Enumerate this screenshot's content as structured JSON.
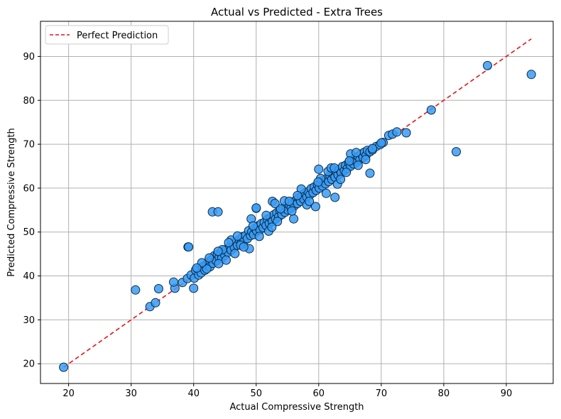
{
  "chart_data": {
    "type": "scatter",
    "title": "Actual vs Predicted - Extra Trees",
    "xlabel": "Actual Compressive Strength",
    "ylabel": "Predicted Compressive Strength",
    "xlim": [
      15.5,
      97.5
    ],
    "ylim": [
      15.5,
      98
    ],
    "xticks": [
      20,
      30,
      40,
      50,
      60,
      70,
      80,
      90
    ],
    "yticks": [
      20,
      30,
      40,
      50,
      60,
      70,
      80,
      90
    ],
    "grid": true,
    "legend": {
      "placement": "top-left",
      "entries": [
        "Perfect Prediction"
      ]
    },
    "colors": {
      "point_fill": "#3a9cf4",
      "point_edge": "#0a2a4a",
      "reference_line": "#e8131a",
      "grid": "#b0b0b0"
    },
    "reference_line": {
      "name": "Perfect Prediction",
      "x": [
        19.2,
        94
      ],
      "y": [
        19.2,
        94
      ]
    },
    "series": [
      {
        "type": "scatter",
        "points": [
          [
            19.2,
            19.2
          ],
          [
            30.7,
            36.8
          ],
          [
            33,
            33
          ],
          [
            33.9,
            33.9
          ],
          [
            34.4,
            37.1
          ],
          [
            37,
            37.2
          ],
          [
            36.8,
            38.6
          ],
          [
            38.2,
            38.5
          ],
          [
            39,
            39.4
          ],
          [
            39.6,
            40.2
          ],
          [
            40,
            37.2
          ],
          [
            39.1,
            46.6
          ],
          [
            40.1,
            39.5
          ],
          [
            40.3,
            41.3
          ],
          [
            40.8,
            40.2
          ],
          [
            41.2,
            40.7
          ],
          [
            41.4,
            42.1
          ],
          [
            41.8,
            41.3
          ],
          [
            42,
            42.6
          ],
          [
            42.3,
            43.2
          ],
          [
            42.6,
            42.1
          ],
          [
            42.9,
            43.8
          ],
          [
            43.1,
            42.9
          ],
          [
            43.3,
            44.6
          ],
          [
            43.6,
            43.5
          ],
          [
            43.8,
            44.9
          ],
          [
            44.1,
            44.3
          ],
          [
            44.3,
            45.2
          ],
          [
            44.5,
            44.0
          ],
          [
            44.8,
            45.7
          ],
          [
            45,
            44.7
          ],
          [
            45.3,
            46.1
          ],
          [
            45.5,
            45.4
          ],
          [
            45.8,
            46.6
          ],
          [
            46,
            45.9
          ],
          [
            46.3,
            47.2
          ],
          [
            46.5,
            46.5
          ],
          [
            46.8,
            47.8
          ],
          [
            47,
            47.0
          ],
          [
            47.3,
            48.2
          ],
          [
            47.6,
            47.4
          ],
          [
            47.8,
            48.9
          ],
          [
            48.1,
            48.0
          ],
          [
            48.3,
            49.2
          ],
          [
            48.6,
            48.5
          ],
          [
            48.8,
            50.3
          ],
          [
            49.1,
            49.2
          ],
          [
            49.3,
            50.1
          ],
          [
            49.6,
            49.4
          ],
          [
            49.8,
            50.8
          ],
          [
            50.1,
            50.2
          ],
          [
            50.3,
            51.4
          ],
          [
            50.6,
            50.5
          ],
          [
            50.8,
            51.9
          ],
          [
            51.1,
            51.0
          ],
          [
            51.3,
            52.2
          ],
          [
            51.6,
            51.5
          ],
          [
            51.8,
            52.9
          ],
          [
            52.1,
            52.0
          ],
          [
            52.3,
            53.2
          ],
          [
            52.6,
            52.4
          ],
          [
            52.8,
            53.9
          ],
          [
            53.1,
            53.0
          ],
          [
            53.3,
            54.4
          ],
          [
            53.6,
            53.5
          ],
          [
            53.8,
            54.9
          ],
          [
            54.1,
            54.0
          ],
          [
            54.3,
            55.2
          ],
          [
            54.6,
            54.5
          ],
          [
            54.8,
            55.9
          ],
          [
            55.1,
            55.0
          ],
          [
            55.3,
            56.2
          ],
          [
            55.6,
            55.5
          ],
          [
            55.8,
            56.8
          ],
          [
            56.1,
            56.0
          ],
          [
            56.3,
            57.2
          ],
          [
            56.6,
            56.5
          ],
          [
            56.8,
            57.8
          ],
          [
            57.1,
            57.0
          ],
          [
            57.3,
            58.2
          ],
          [
            57.6,
            57.5
          ],
          [
            57.8,
            58.9
          ],
          [
            58.1,
            58.0
          ],
          [
            58.3,
            59.2
          ],
          [
            58.6,
            58.5
          ],
          [
            58.8,
            59.9
          ],
          [
            59.1,
            59.0
          ],
          [
            59.3,
            60.3
          ],
          [
            59.6,
            59.5
          ],
          [
            59.8,
            60.8
          ],
          [
            60.1,
            60.0
          ],
          [
            60.3,
            61.2
          ],
          [
            60.6,
            60.5
          ],
          [
            60.8,
            61.8
          ],
          [
            61.1,
            61.0
          ],
          [
            61.3,
            62.2
          ],
          [
            61.6,
            61.5
          ],
          [
            61.8,
            62.9
          ],
          [
            62.1,
            62.0
          ],
          [
            62.3,
            63.2
          ],
          [
            62.6,
            62.5
          ],
          [
            62.8,
            63.8
          ],
          [
            63.1,
            63.0
          ],
          [
            63.3,
            64.2
          ],
          [
            63.6,
            63.5
          ],
          [
            63.8,
            64.9
          ],
          [
            64.1,
            64.0
          ],
          [
            64.3,
            65.2
          ],
          [
            64.6,
            64.5
          ],
          [
            64.8,
            65.8
          ],
          [
            65.1,
            65.0
          ],
          [
            65.3,
            66.2
          ],
          [
            65.6,
            65.5
          ],
          [
            65.8,
            66.8
          ],
          [
            66.1,
            66.0
          ],
          [
            66.3,
            67.2
          ],
          [
            66.6,
            66.5
          ],
          [
            66.8,
            67.8
          ],
          [
            67.1,
            67.0
          ],
          [
            67.3,
            68.2
          ],
          [
            67.6,
            67.5
          ],
          [
            67.8,
            68.6
          ],
          [
            68.2,
            68.3
          ],
          [
            68.6,
            68.7
          ],
          [
            69.2,
            69.5
          ],
          [
            69.8,
            69.9
          ],
          [
            70.3,
            70.4
          ],
          [
            71.2,
            72.0
          ],
          [
            71.8,
            72.3
          ],
          [
            72.5,
            72.8
          ],
          [
            74,
            72.6
          ],
          [
            78,
            77.8
          ],
          [
            82,
            68.3
          ],
          [
            87,
            87.9
          ],
          [
            94,
            85.9
          ],
          [
            43,
            54.6
          ],
          [
            43.9,
            54.6
          ],
          [
            49.2,
            53
          ],
          [
            50,
            55.4
          ],
          [
            52.6,
            57
          ],
          [
            60,
            64.3
          ],
          [
            62.6,
            57.9
          ],
          [
            68.2,
            63.4
          ],
          [
            59.5,
            55.8
          ],
          [
            56,
            53
          ],
          [
            46,
            48.2
          ],
          [
            47.5,
            47.0
          ],
          [
            48.9,
            46.2
          ],
          [
            44.6,
            46.0
          ],
          [
            42.5,
            44.1
          ],
          [
            52,
            50.2
          ],
          [
            53.4,
            52.4
          ],
          [
            55.7,
            54.8
          ],
          [
            58.1,
            56.2
          ],
          [
            57.2,
            59.8
          ],
          [
            61.2,
            58.8
          ],
          [
            61.5,
            63.8
          ],
          [
            64.4,
            63.6
          ],
          [
            65.1,
            67.8
          ],
          [
            66.3,
            65.2
          ],
          [
            63.0,
            60.9
          ],
          [
            60.3,
            62.2
          ],
          [
            54.5,
            57.1
          ],
          [
            51.6,
            53.8
          ],
          [
            49.5,
            51.4
          ],
          [
            47.0,
            49.1
          ],
          [
            45.6,
            47.6
          ],
          [
            43.9,
            45.6
          ],
          [
            42.1,
            41.6
          ],
          [
            41.3,
            43.0
          ],
          [
            40.5,
            41.8
          ],
          [
            44.0,
            42.8
          ],
          [
            45.2,
            43.6
          ],
          [
            46.6,
            45.1
          ],
          [
            48.0,
            46.6
          ],
          [
            50.5,
            49.0
          ],
          [
            52.5,
            51.1
          ],
          [
            53.9,
            55.3
          ],
          [
            55.3,
            57.0
          ],
          [
            56.6,
            58.3
          ],
          [
            58.5,
            57.0
          ],
          [
            59.9,
            61.4
          ],
          [
            62.0,
            64.6
          ],
          [
            63.5,
            62.0
          ],
          [
            64.9,
            66.2
          ],
          [
            66.0,
            68.1
          ],
          [
            67.5,
            66.5
          ],
          [
            68.6,
            69.0
          ],
          [
            70.0,
            70.3
          ],
          [
            50,
            55.5
          ],
          [
            39.2,
            46.6
          ],
          [
            62.5,
            64.6
          ],
          [
            53,
            56.5
          ]
        ]
      }
    ]
  }
}
